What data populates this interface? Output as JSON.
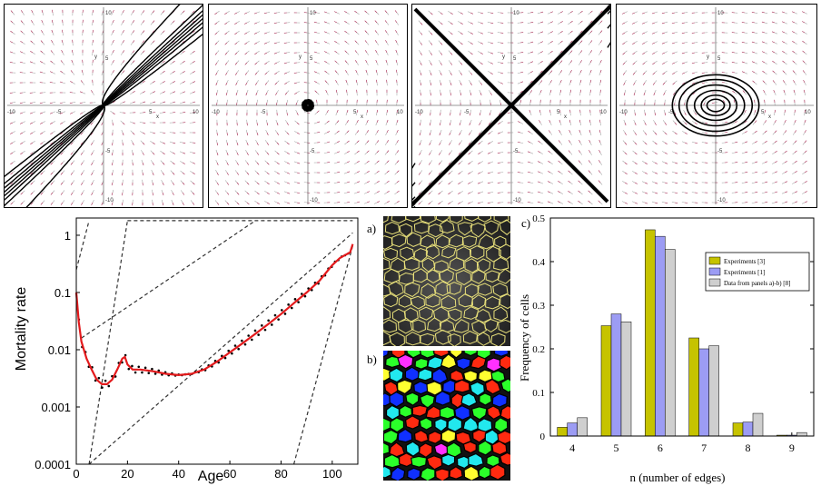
{
  "phase_portraits": [
    {
      "name": "node",
      "tick_labels": [
        "-10",
        "-5",
        "5",
        "10",
        "10",
        "5",
        "-5",
        "-10"
      ],
      "axis_x": "x",
      "axis_y": "y"
    },
    {
      "name": "spiral",
      "tick_labels": [
        "-10",
        "-5",
        "5",
        "10",
        "10",
        "5",
        "-5",
        "-10"
      ],
      "axis_x": "x",
      "axis_y": "y"
    },
    {
      "name": "saddle",
      "tick_labels": [
        "-10",
        "-5",
        "5",
        "10",
        "10",
        "5",
        "-5",
        "-10"
      ],
      "axis_x": "x",
      "axis_y": "y"
    },
    {
      "name": "center",
      "tick_labels": [
        "-10",
        "-5",
        "5",
        "10",
        "10",
        "5",
        "-5",
        "-10"
      ],
      "axis_x": "x",
      "axis_y": "y"
    }
  ],
  "labels": {
    "a": "a)",
    "b": "b)",
    "c": "c)"
  },
  "chart_data": [
    {
      "type": "line",
      "xlabel": "Age",
      "ylabel": "Mortality rate",
      "xlim": [
        0,
        110
      ],
      "ylim": [
        0.0001,
        2
      ],
      "yscale": "log",
      "x_ticks": [
        "0",
        "20",
        "40",
        "60",
        "80",
        "100"
      ],
      "y_ticks": [
        "1",
        "0.1",
        "0.01",
        "0.001",
        "0.0001"
      ],
      "series": [
        {
          "color": "#e31a1c",
          "x": [
            0,
            1,
            2,
            4,
            6,
            8,
            10,
            12,
            14,
            16,
            18,
            19,
            20,
            22,
            25,
            30,
            35,
            40,
            45,
            50,
            55,
            60,
            65,
            70,
            75,
            80,
            85,
            90,
            95,
            100,
            103,
            105,
            107,
            108
          ],
          "y": [
            0.1,
            0.03,
            0.014,
            0.007,
            0.0045,
            0.003,
            0.0025,
            0.0025,
            0.003,
            0.0045,
            0.007,
            0.0075,
            0.0055,
            0.0045,
            0.0045,
            0.0042,
            0.0038,
            0.0036,
            0.0038,
            0.0045,
            0.0062,
            0.009,
            0.013,
            0.019,
            0.028,
            0.042,
            0.065,
            0.1,
            0.16,
            0.3,
            0.4,
            0.45,
            0.5,
            0.7
          ]
        }
      ],
      "dashed_lines": [
        {
          "x": [
            0,
            5
          ],
          "y": [
            0.25,
            1.8
          ]
        },
        {
          "x": [
            5,
            20
          ],
          "y": [
            0.0001,
            1.8
          ]
        },
        {
          "x": [
            2,
            70
          ],
          "y": [
            0.016,
            1.8
          ]
        },
        {
          "x": [
            5,
            108
          ],
          "y": [
            0.0001,
            1.1
          ]
        },
        {
          "x": [
            85,
            108
          ],
          "y": [
            0.0001,
            0.65
          ]
        },
        {
          "x": [
            20,
            108
          ],
          "y": [
            1.8,
            1.8
          ]
        }
      ]
    },
    {
      "type": "bar",
      "xlabel": "n (number of edges)",
      "ylabel": "Frequency of cells",
      "ylim": [
        0,
        0.5
      ],
      "y_ticks": [
        "0",
        "0.1",
        "0.2",
        "0.3",
        "0.4",
        "0.5"
      ],
      "categories": [
        "4",
        "5",
        "6",
        "7",
        "8",
        "9"
      ],
      "legend_position": "top-right",
      "series": [
        {
          "name": "Experiments [3]",
          "color": "#c6c300",
          "values": [
            0.02,
            0.253,
            0.473,
            0.225,
            0.03,
            0.002
          ]
        },
        {
          "name": "Experiments [1]",
          "color": "#9c9cf4",
          "values": [
            0.03,
            0.28,
            0.458,
            0.2,
            0.032,
            0.002
          ]
        },
        {
          "name": "Data from panels a)-b) [8]",
          "color": "#cfcfcf",
          "values": [
            0.042,
            0.262,
            0.428,
            0.207,
            0.052,
            0.008
          ]
        }
      ]
    }
  ]
}
